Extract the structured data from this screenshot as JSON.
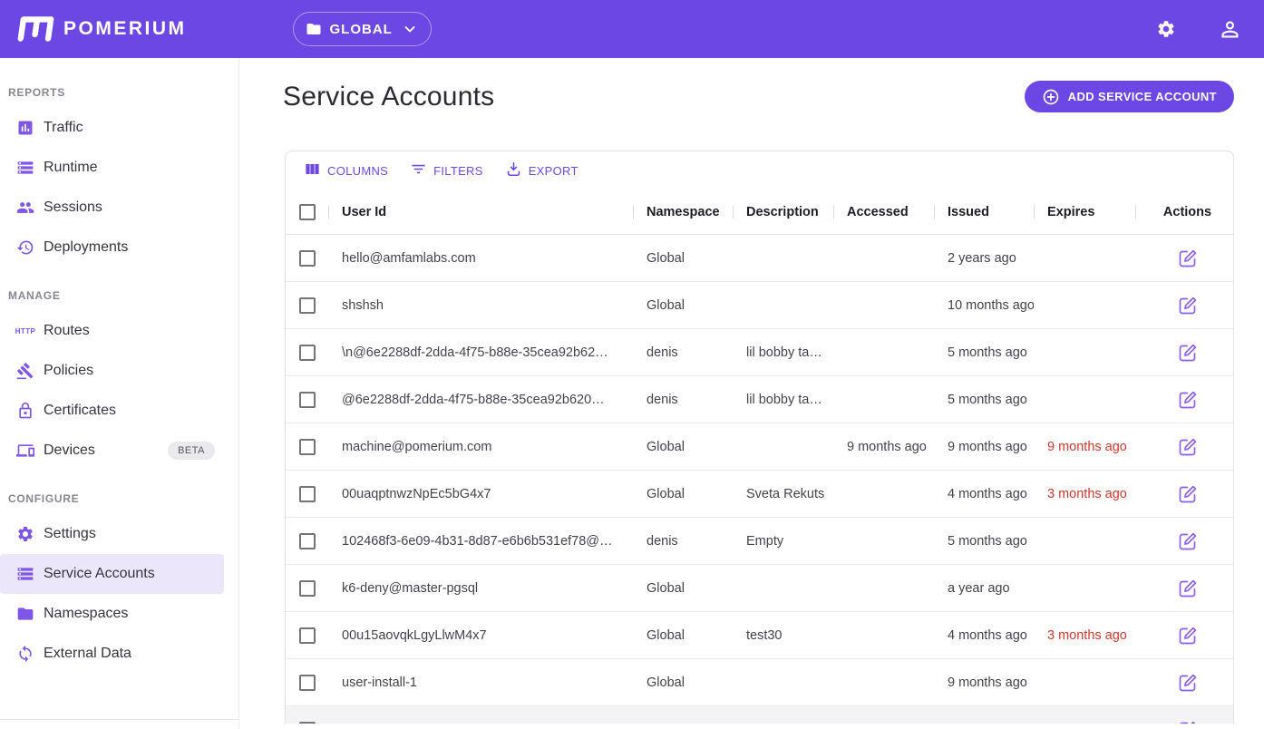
{
  "topbar": {
    "brand": "POMERIUM",
    "namespace_selector": {
      "label": "GLOBAL",
      "icon": "folder",
      "chevron_icon": "chevron-down"
    },
    "settings_icon": "gear",
    "account_icon": "person"
  },
  "sidebar": {
    "sections": [
      {
        "label": "REPORTS",
        "items": [
          {
            "label": "Traffic",
            "icon": "bar-chart"
          },
          {
            "label": "Runtime",
            "icon": "storage"
          },
          {
            "label": "Sessions",
            "icon": "people"
          },
          {
            "label": "Deployments",
            "icon": "history-clock"
          }
        ]
      },
      {
        "label": "MANAGE",
        "items": [
          {
            "label": "Routes",
            "icon": "http"
          },
          {
            "label": "Policies",
            "icon": "gavel"
          },
          {
            "label": "Certificates",
            "icon": "lock"
          },
          {
            "label": "Devices",
            "icon": "devices",
            "badge": "BETA"
          }
        ]
      },
      {
        "label": "CONFIGURE",
        "items": [
          {
            "label": "Settings",
            "icon": "gear"
          },
          {
            "label": "Service Accounts",
            "icon": "storage",
            "selected": true
          },
          {
            "label": "Namespaces",
            "icon": "folder"
          },
          {
            "label": "External Data",
            "icon": "sync-cloud"
          }
        ]
      }
    ]
  },
  "page": {
    "title": "Service Accounts",
    "add_button_label": "ADD SERVICE ACCOUNT",
    "add_button_icon": "plus-circle"
  },
  "table": {
    "toolbar": [
      {
        "label": "COLUMNS",
        "icon": "view-columns"
      },
      {
        "label": "FILTERS",
        "icon": "filter-lines"
      },
      {
        "label": "EXPORT",
        "icon": "download"
      }
    ],
    "columns": [
      "User Id",
      "Namespace",
      "Description",
      "Accessed",
      "Issued",
      "Expires",
      "Actions"
    ],
    "rows": [
      {
        "user_id": "hello@amfamlabs.com",
        "namespace": "Global",
        "description": "",
        "accessed": "",
        "issued": "2 years ago",
        "expires": "",
        "expired": false
      },
      {
        "user_id": "shshsh",
        "namespace": "Global",
        "description": "",
        "accessed": "",
        "issued": "10 months ago",
        "expires": "",
        "expired": false
      },
      {
        "user_id": "\\n@6e2288df-2dda-4f75-b88e-35cea92b62…",
        "namespace": "denis",
        "description": "lil bobby ta…",
        "accessed": "",
        "issued": "5 months ago",
        "expires": "",
        "expired": false
      },
      {
        "user_id": "@6e2288df-2dda-4f75-b88e-35cea92b620…",
        "namespace": "denis",
        "description": "lil bobby ta…",
        "accessed": "",
        "issued": "5 months ago",
        "expires": "",
        "expired": false
      },
      {
        "user_id": "machine@pomerium.com",
        "namespace": "Global",
        "description": "",
        "accessed": "9 months ago",
        "issued": "9 months ago",
        "expires": "9 months ago",
        "expired": true
      },
      {
        "user_id": "00uaqptnwzNpEc5bG4x7",
        "namespace": "Global",
        "description": "Sveta Rekuts",
        "accessed": "",
        "issued": "4 months ago",
        "expires": "3 months ago",
        "expired": true
      },
      {
        "user_id": "102468f3-6e09-4b31-8d87-e6b6b531ef78@…",
        "namespace": "denis",
        "description": "Empty",
        "accessed": "",
        "issued": "5 months ago",
        "expires": "",
        "expired": false
      },
      {
        "user_id": "k6-deny@master-pgsql",
        "namespace": "Global",
        "description": "",
        "accessed": "",
        "issued": "a year ago",
        "expires": "",
        "expired": false
      },
      {
        "user_id": "00u15aovqkLgyLlwM4x7",
        "namespace": "Global",
        "description": "test30",
        "accessed": "",
        "issued": "4 months ago",
        "expires": "3 months ago",
        "expired": true
      },
      {
        "user_id": "user-install-1",
        "namespace": "Global",
        "description": "",
        "accessed": "",
        "issued": "9 months ago",
        "expires": "",
        "expired": false
      },
      {
        "user_id": "",
        "namespace": "",
        "description": "",
        "accessed": "",
        "issued": "",
        "expires": "",
        "expired": false,
        "partial": true
      }
    ],
    "row_action_icon": "edit"
  },
  "colors": {
    "brand_purple": "#6C47E4",
    "icon_purple": "#7E57E8",
    "edit_icon_purple": "#8A5EF0",
    "selected_item_bg": "#ECE6FB",
    "expired_red": "#D2372E"
  }
}
